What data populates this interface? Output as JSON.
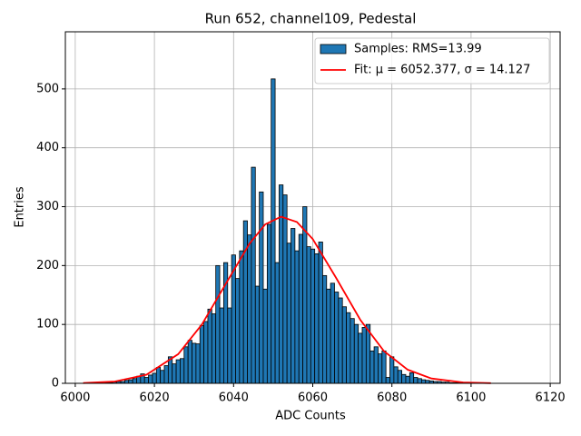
{
  "chart_data": {
    "type": "histogram",
    "title": "Run 652, channel109, Pedestal",
    "xlabel": "ADC Counts",
    "ylabel": "Entries",
    "name": "Samples: RMS=13.99",
    "color": "#1f77b4",
    "bins": [
      6007.5,
      6008.5,
      6009.5,
      6010.5,
      6011.5,
      6012.5,
      6013.5,
      6014.5,
      6015.5,
      6016.5,
      6017.5,
      6018.5,
      6019.5,
      6020.5,
      6021.5,
      6022.5,
      6023.5,
      6024.5,
      6025.5,
      6026.5,
      6027.5,
      6028.5,
      6029.5,
      6030.5,
      6031.5,
      6032.5,
      6033.5,
      6034.5,
      6035.5,
      6036.5,
      6037.5,
      6038.5,
      6039.5,
      6040.5,
      6041.5,
      6042.5,
      6043.5,
      6044.5,
      6045.5,
      6046.5,
      6047.5,
      6048.5,
      6049.5,
      6050.5,
      6051.5,
      6052.5,
      6053.5,
      6054.5,
      6055.5,
      6056.5,
      6057.5,
      6058.5,
      6059.5,
      6060.5,
      6061.5,
      6062.5,
      6063.5,
      6064.5,
      6065.5,
      6066.5,
      6067.5,
      6068.5,
      6069.5,
      6070.5,
      6071.5,
      6072.5,
      6073.5,
      6074.5,
      6075.5,
      6076.5,
      6077.5,
      6078.5,
      6079.5,
      6080.5,
      6081.5,
      6082.5,
      6083.5,
      6084.5,
      6085.5,
      6086.5,
      6087.5,
      6088.5,
      6089.5,
      6090.5,
      6091.5,
      6092.5,
      6093.5,
      6094.5,
      6095.5,
      6096.5,
      6097.5,
      6098.5,
      6099.5,
      6100.5
    ],
    "counts": [
      1,
      1,
      2,
      3,
      3,
      5,
      6,
      8,
      12,
      16,
      10,
      14,
      17,
      27,
      22,
      30,
      45,
      33,
      40,
      42,
      62,
      73,
      68,
      67,
      98,
      105,
      126,
      118,
      200,
      128,
      205,
      128,
      218,
      178,
      225,
      276,
      252,
      367,
      165,
      325,
      160,
      270,
      517,
      205,
      337,
      320,
      238,
      263,
      225,
      253,
      300,
      232,
      228,
      220,
      240,
      183,
      160,
      170,
      155,
      145,
      130,
      120,
      110,
      100,
      85,
      95,
      100,
      55,
      62,
      50,
      55,
      10,
      45,
      28,
      22,
      15,
      12,
      18,
      10,
      8,
      6,
      5,
      4,
      3,
      3,
      2,
      2,
      1,
      1,
      1,
      0,
      0,
      0
    ],
    "fit": {
      "type": "line",
      "name": "Fit: μ = 6052.377, σ = 14.127",
      "color": "#ff0000",
      "x": [
        6002,
        6010,
        6018,
        6026,
        6032,
        6038,
        6044,
        6048,
        6052,
        6056,
        6060,
        6066,
        6072,
        6078,
        6084,
        6090,
        6098,
        6105
      ],
      "values": [
        0.49,
        3.1,
        14.6,
        49.5,
        100,
        168.6,
        237,
        270,
        283,
        274,
        245,
        178,
        108,
        54.6,
        23.1,
        8.2,
        1.5,
        0.3
      ]
    },
    "xlim": [
      5997.5,
      6122.5
    ],
    "ylim": [
      0,
      597
    ],
    "xticks": [
      6000,
      6020,
      6040,
      6060,
      6080,
      6100,
      6120
    ],
    "yticks": [
      0,
      100,
      200,
      300,
      400,
      500
    ],
    "grid": true,
    "legend": "upper right"
  }
}
